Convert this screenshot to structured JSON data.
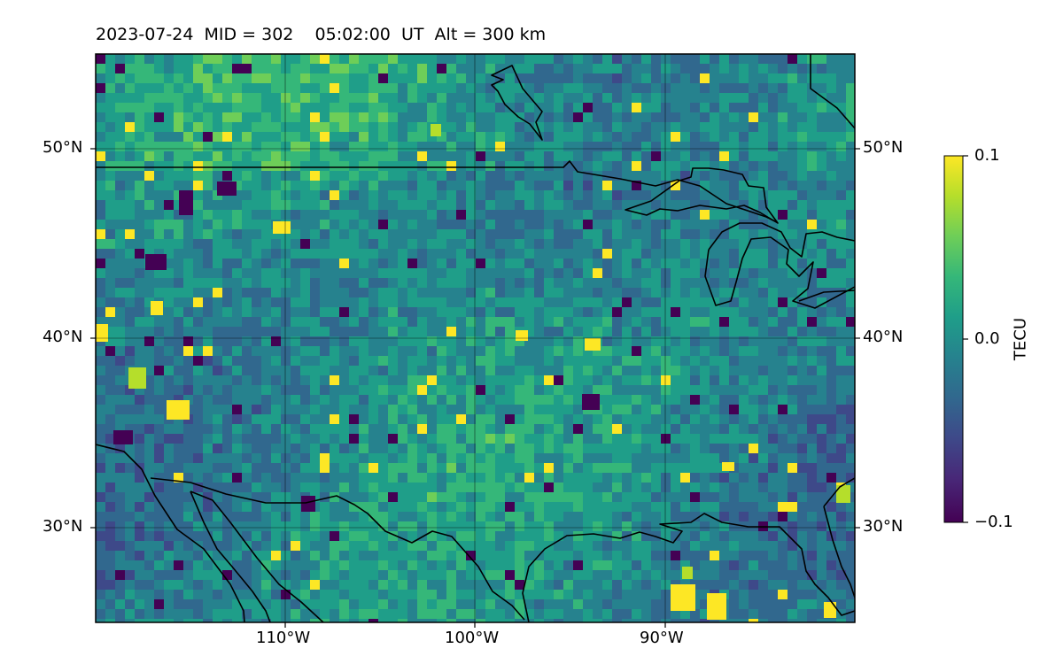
{
  "title": "2023-07-24  MID = 302    05:02:00  UT  Alt = 300 km",
  "map": {
    "extent": {
      "lon_min": -120,
      "lon_max": -80,
      "lat_min": 25,
      "lat_max": 55
    },
    "gridlines": {
      "lon": [
        -110,
        -100,
        -90
      ],
      "lat": [
        30,
        40,
        50
      ]
    },
    "lon_labels": [
      "110°W",
      "100°W",
      "90°W"
    ],
    "lat_labels_left": [
      "50°N",
      "40°N",
      "30°N"
    ],
    "lat_labels_right": [
      "50°N",
      "40°N",
      "30°N"
    ],
    "colormap": "viridis",
    "field": "TEC perturbation map (dTEC)",
    "coastlines": "US/Canada border, US/Mexico border, Great Lakes, Gulf of Mexico coast",
    "notable_features": [
      "bright yellow patches near the Gulf coast around 89°W and 87°W, 26°N",
      "yellow patches in the Rocky Mountain region near 118°W 40°N and 114°W 36°N",
      "dark purple patches near 115°W 47°N and 96°W 37°N"
    ]
  },
  "colorbar": {
    "label": "TECU",
    "min": -0.1,
    "max": 0.1,
    "ticks": [
      "0.1",
      "0.0",
      "−0.1"
    ],
    "colors": [
      "#fde725",
      "#b5de2b",
      "#6ece58",
      "#35b779",
      "#1f9e89",
      "#26828e",
      "#31688e",
      "#3e4989",
      "#482878",
      "#440154"
    ]
  }
}
